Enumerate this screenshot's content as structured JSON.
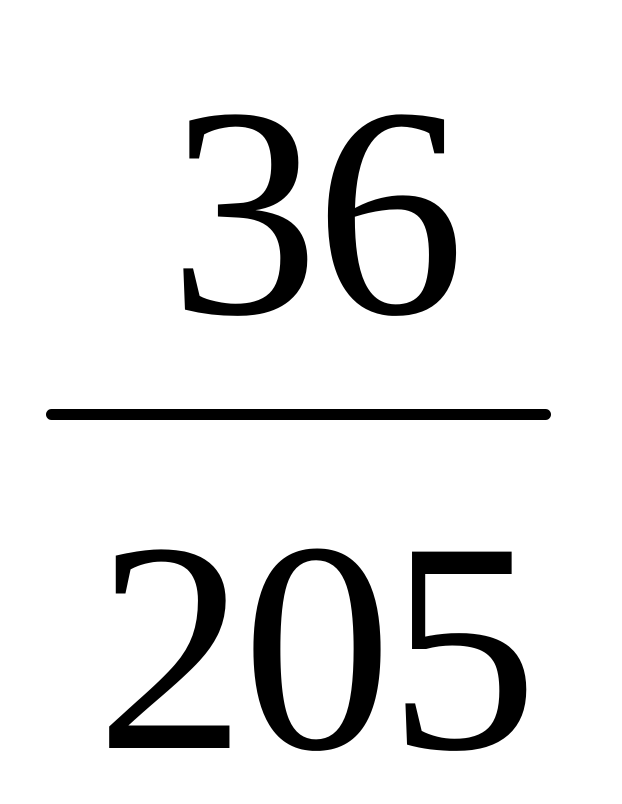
{
  "fraction": {
    "numerator": "36",
    "denominator": "205"
  }
}
